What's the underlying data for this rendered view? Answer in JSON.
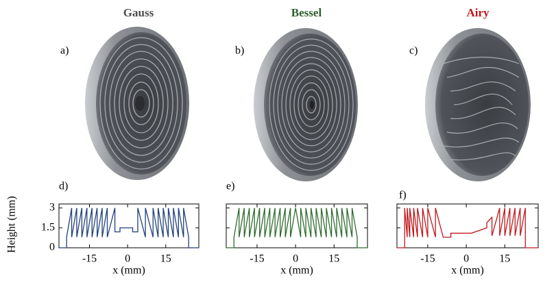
{
  "chart_data": [
    {
      "type": "line",
      "title": "Gauss",
      "title_color": "#4d4d4d",
      "image_label": "a)",
      "label": "d)",
      "ylabel": "Height (mm)",
      "xlabel": "x (mm)",
      "xlim": [
        -27,
        28
      ],
      "ylim": [
        0,
        3.3
      ],
      "xticks": [
        -15,
        0,
        15
      ],
      "yticks": [
        0,
        1.5,
        3
      ],
      "series": [
        {
          "color": "#1f3f7a",
          "x": [
            -27,
            -24,
            -24,
            -22,
            -22,
            -20,
            -20,
            -18,
            -18,
            -16,
            -16,
            -14,
            -14,
            -12,
            -12,
            -10,
            -10,
            -8,
            -8,
            -5,
            -5,
            -3,
            -3,
            2,
            2,
            4,
            4,
            7,
            7,
            10,
            10,
            12,
            12,
            14,
            14,
            16,
            16,
            18,
            18,
            20,
            20,
            22,
            22,
            24,
            24,
            28
          ],
          "values": [
            0,
            0,
            0.8,
            3,
            0.8,
            3,
            0.8,
            3,
            0.8,
            3,
            0.8,
            3,
            0.8,
            3,
            0.8,
            3,
            0.8,
            3,
            0.8,
            3,
            1.2,
            1.2,
            1.5,
            1.5,
            1.2,
            1.2,
            3,
            0.8,
            3,
            0.8,
            3,
            0.8,
            3,
            0.8,
            3,
            0.8,
            3,
            0.8,
            3,
            0.8,
            3,
            0.8,
            3,
            0.8,
            0,
            0
          ]
        }
      ]
    },
    {
      "type": "line",
      "title": "Bessel",
      "title_color": "#2b5e2b",
      "image_label": "b)",
      "label": "e)",
      "xlabel": "x (mm)",
      "xlim": [
        -27,
        28
      ],
      "ylim": [
        0,
        3.3
      ],
      "xticks": [
        -15,
        0,
        15
      ],
      "yticks": [
        0,
        1.5,
        3
      ],
      "series": [
        {
          "color": "#2e6b2e",
          "x": [
            -27,
            -24,
            -24,
            -22,
            -22,
            -20,
            -20,
            -18,
            -18,
            -16,
            -16,
            -14,
            -14,
            -12,
            -12,
            -10,
            -10,
            -8,
            -8,
            -6,
            -6,
            -4,
            -4,
            -2,
            -2,
            0,
            2,
            2,
            4,
            4,
            6,
            6,
            8,
            8,
            10,
            10,
            12,
            12,
            14,
            14,
            16,
            16,
            18,
            18,
            20,
            20,
            22,
            22,
            24,
            24,
            28
          ],
          "values": [
            0,
            0,
            0.8,
            3,
            0.8,
            3,
            0.8,
            3,
            0.8,
            3,
            0.8,
            3,
            0.8,
            3,
            0.8,
            3,
            0.8,
            3,
            0.8,
            3,
            0.8,
            3,
            0.8,
            3,
            0.8,
            3,
            0.8,
            3,
            0.8,
            3,
            0.8,
            3,
            0.8,
            3,
            0.8,
            3,
            0.8,
            3,
            0.8,
            3,
            0.8,
            3,
            0.8,
            3,
            0.8,
            3,
            0.8,
            3,
            0.8,
            0,
            0
          ]
        }
      ]
    },
    {
      "type": "line",
      "title": "Airy",
      "title_color": "#c0171c",
      "image_label": "c)",
      "label": "f)",
      "xlabel": "x (mm)",
      "xlim": [
        -27,
        28
      ],
      "ylim": [
        0,
        3.3
      ],
      "xticks": [
        -15,
        0,
        15
      ],
      "yticks": [
        0,
        1.5,
        3
      ],
      "series": [
        {
          "color": "#c0171c",
          "x": [
            -27,
            -24,
            -24,
            -23,
            -23,
            -22,
            -22,
            -20.5,
            -20.5,
            -19,
            -19,
            -17,
            -17,
            -15,
            -15,
            -12,
            -12,
            -9,
            -6,
            -6,
            2,
            8,
            8,
            10,
            10,
            13,
            13,
            15,
            15,
            17,
            17,
            19,
            19,
            21,
            21,
            23,
            23,
            28
          ],
          "values": [
            0,
            0,
            3,
            0.8,
            3,
            0.8,
            3,
            0.8,
            3,
            0.8,
            3,
            0.8,
            3,
            0.8,
            3,
            0.8,
            3,
            0.8,
            0.8,
            1.1,
            1.1,
            1.5,
            1.9,
            2.3,
            0.9,
            3,
            0.9,
            3,
            0.9,
            3,
            0.9,
            3,
            0.9,
            3,
            0.9,
            3,
            0,
            0
          ]
        }
      ]
    }
  ]
}
